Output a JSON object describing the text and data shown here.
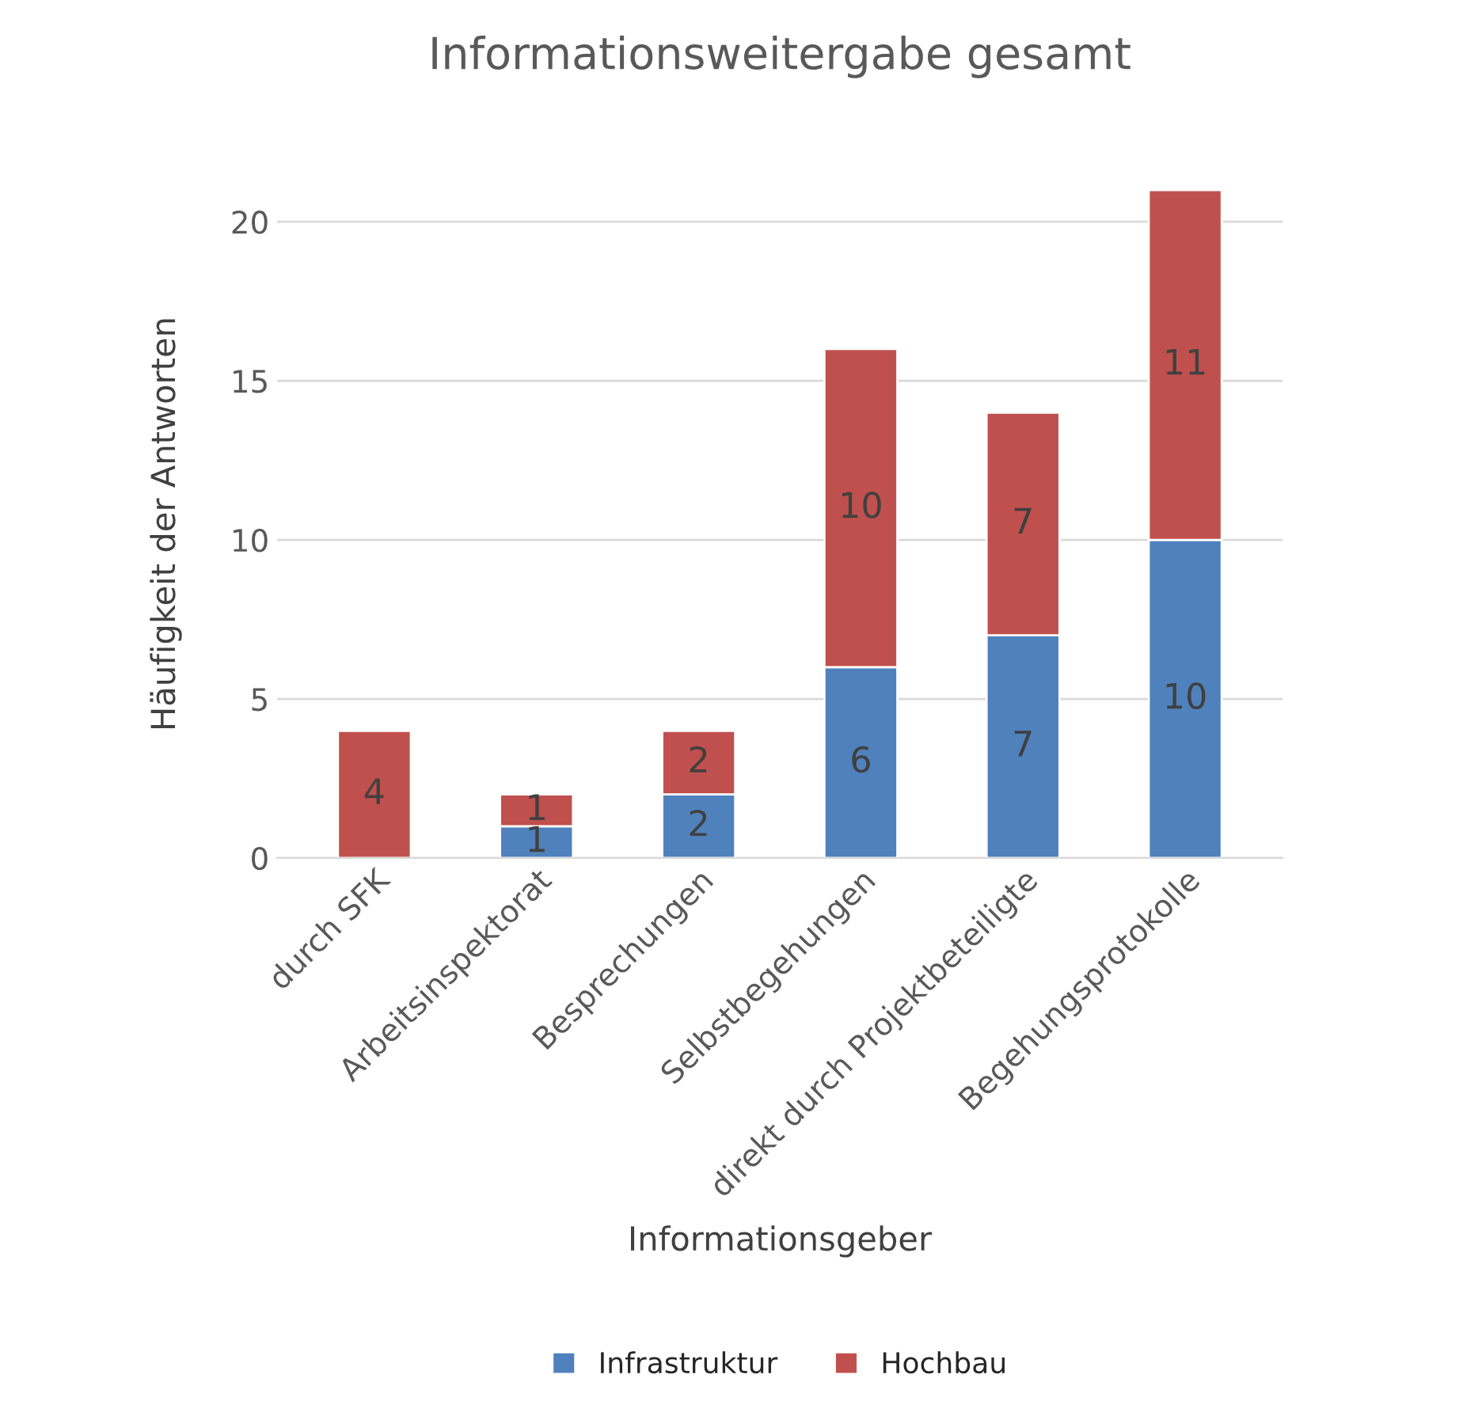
{
  "chart_data": {
    "type": "bar",
    "title": "Informationsweitergabe gesamt",
    "xlabel": "Informationsgeber",
    "ylabel": "Häufigkeit der Antworten",
    "categories": [
      "durch SFK",
      "Arbeitsinspektorat",
      "Besprechungen",
      "Selbstbegehungen",
      "direkt durch Projektbeteiligte",
      "Begehungsprotokolle"
    ],
    "stacked": true,
    "series": [
      {
        "name": "Infrastruktur",
        "color": "#4f81bd",
        "values": [
          0,
          1,
          2,
          6,
          7,
          10
        ],
        "value_labels": [
          null,
          "1",
          "2",
          "6",
          "7",
          "10"
        ]
      },
      {
        "name": "Hochbau",
        "color": "#c0504d",
        "values": [
          4,
          1,
          2,
          10,
          7,
          11
        ],
        "value_labels": [
          "4",
          "1",
          "2",
          "10",
          "7",
          "11"
        ]
      }
    ],
    "ylim": [
      0,
      21
    ],
    "yticks": [
      0,
      5,
      10,
      15,
      20
    ],
    "grid": "y",
    "legend": "bottom"
  }
}
